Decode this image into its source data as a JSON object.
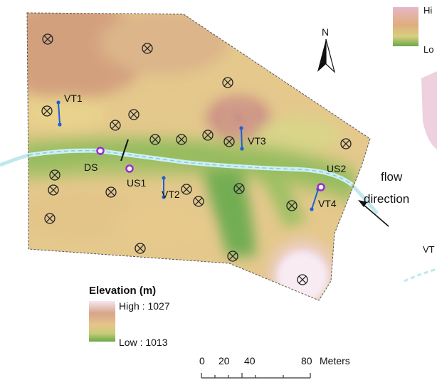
{
  "colors": {
    "elevation_high": "#f6e6ef",
    "elevation_mid": "#e6c58a",
    "elevation_low": "#6aa848",
    "stream": "#bfe8ee",
    "sensor_marker": "#9b2bd6",
    "transect": "#1f5fd6"
  },
  "north_arrow": {
    "label": "N"
  },
  "flow": {
    "line1": "flow",
    "line2": "direction"
  },
  "stations": [
    {
      "id": "ds",
      "label": "DS"
    },
    {
      "id": "us1",
      "label": "US1"
    },
    {
      "id": "us2",
      "label": "US2"
    }
  ],
  "transects": [
    {
      "id": "vt1",
      "label": "VT1"
    },
    {
      "id": "vt2",
      "label": "VT2"
    },
    {
      "id": "vt3",
      "label": "VT3"
    },
    {
      "id": "vt4",
      "label": "VT4"
    }
  ],
  "legend": {
    "title": "Elevation (m)",
    "high_label": "High : 1027",
    "low_label": "Low : 1013",
    "high_value": 1027,
    "low_value": 1013
  },
  "secondary_legend": {
    "high_label": "Hi",
    "low_label": "Lo"
  },
  "secondary_map": {
    "partial_label": "VT"
  },
  "scale_bar": {
    "ticks": [
      "0",
      "20",
      "40",
      "80"
    ],
    "unit": "Meters"
  }
}
